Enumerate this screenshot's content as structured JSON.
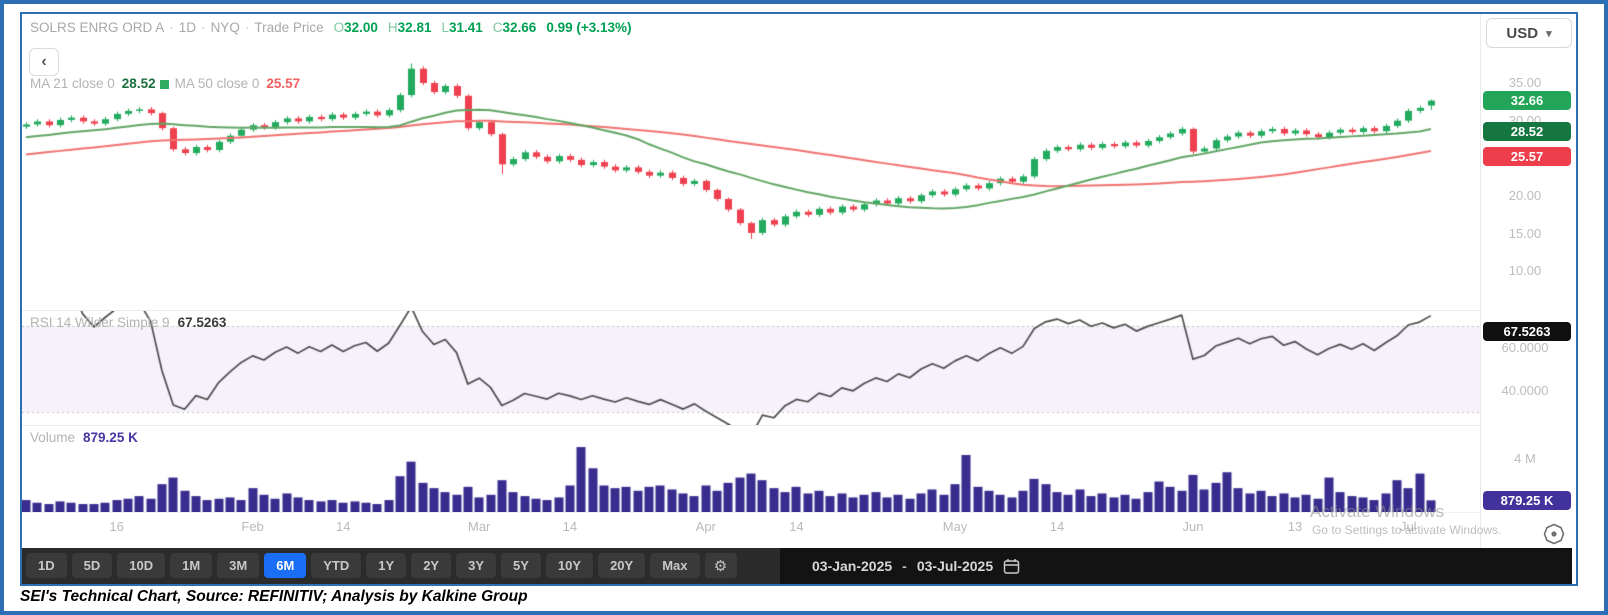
{
  "header": {
    "symbol": "SOLRS ENRG ORD A",
    "dot": "·",
    "interval": "1D",
    "exchange": "NYQ",
    "series": "Trade Price",
    "ohlc": [
      {
        "k": "O",
        "v": "32.00"
      },
      {
        "k": "H",
        "v": "32.81"
      },
      {
        "k": "L",
        "v": "31.41"
      },
      {
        "k": "C",
        "v": "32.66"
      }
    ],
    "change": "0.99 (+3.13%)",
    "back_glyph": "‹"
  },
  "currency": {
    "label": "USD",
    "chevron": "▾"
  },
  "legend": {
    "ma21_label": "MA 21 close 0",
    "ma21_value": "28.52",
    "ma50_label": "MA 50 close 0",
    "ma50_value": "25.57"
  },
  "price_axis": {
    "ticks": [
      "35.00",
      "30.00",
      "25.00",
      "20.00",
      "15.00",
      "10.00"
    ],
    "last_badge": "32.66",
    "ma21_badge": "28.52",
    "ma50_badge": "25.57"
  },
  "rsi_pane": {
    "label": "RSI 14 Wilder Simple 9",
    "value": "67.5263",
    "axis_ticks": [
      "60.0000",
      "40.0000"
    ],
    "badge": "67.5263"
  },
  "volume_pane": {
    "label": "Volume",
    "value": "879.25 K",
    "axis_tick": "4 M",
    "badge": "879.25 K"
  },
  "time_axis": {
    "ticks": [
      {
        "label": "16",
        "day": 8
      },
      {
        "label": "Feb",
        "day": 20
      },
      {
        "label": "14",
        "day": 28
      },
      {
        "label": "Mar",
        "day": 40
      },
      {
        "label": "14",
        "day": 48
      },
      {
        "label": "Apr",
        "day": 60
      },
      {
        "label": "14",
        "day": 68
      },
      {
        "label": "May",
        "day": 82
      },
      {
        "label": "14",
        "day": 91
      },
      {
        "label": "Jun",
        "day": 103
      },
      {
        "label": "13",
        "day": 112
      },
      {
        "label": "Jul",
        "day": 122
      }
    ]
  },
  "toolbar": {
    "ranges": [
      "1D",
      "5D",
      "10D",
      "1M",
      "3M",
      "6M",
      "YTD",
      "1Y",
      "2Y",
      "3Y",
      "5Y",
      "10Y",
      "20Y",
      "Max"
    ],
    "selected": "6M",
    "gear_glyph": "⚙",
    "date_from": "03-Jan-2025",
    "date_to": "03-Jul-2025",
    "date_separator": "-"
  },
  "watermark": {
    "line1": "Activate Windows",
    "line2": "Go to Settings to activate Windows."
  },
  "caption": "SEI's Technical Chart, Source: REFINITIV; Analysis by Kalkine Group",
  "colors": {
    "frame_blue": "#2d6fb5",
    "candle_up": "#22ab5e",
    "candle_down": "#ef404f",
    "ma21": "#61a564",
    "ma50": "#f0726f",
    "rsi_line": "#4d4d4d",
    "rsi_band_bg": "#f7f1fb",
    "dashed_gray": "#c4c4c4",
    "volume_bar": "#382d8e",
    "badge_last": "#23a559",
    "badge_ma21": "#15773f",
    "badge_ma50": "#ee3d4b",
    "badge_rsi": "#101010",
    "badge_volume": "#41339b",
    "selected_range_blue": "#1a6df5",
    "value_green": "#00a152"
  },
  "chart_data": [
    {
      "type": "candlestick",
      "title": "SOLRS ENRG ORD A · 1D · NYQ · Trade Price",
      "x_start": "03-Jan-2025",
      "x_end": "03-Jul-2025",
      "interval": "daily",
      "ylim": [
        5,
        40
      ],
      "yticks": [
        35,
        30,
        25,
        20,
        15,
        10
      ],
      "last": {
        "open": 32.0,
        "high": 32.81,
        "low": 31.41,
        "close": 32.66,
        "change_pct": "+3.13%"
      },
      "overlays": [
        {
          "name": "MA 21 close",
          "period": 21,
          "last": 28.52
        },
        {
          "name": "MA 50 close",
          "period": 50,
          "last": 25.57
        }
      ],
      "ma_warmup": {
        "from": 21.5,
        "to": 29.2,
        "count": 50
      },
      "candles": [
        [
          29.2,
          29.8,
          28.9,
          29.5
        ],
        [
          29.5,
          30.2,
          29.2,
          29.9
        ],
        [
          29.9,
          30.2,
          29.1,
          29.4
        ],
        [
          29.4,
          30.4,
          29.1,
          30.1
        ],
        [
          30.1,
          30.7,
          29.8,
          30.4
        ],
        [
          30.4,
          30.7,
          29.6,
          29.9
        ],
        [
          29.9,
          30.2,
          29.3,
          29.6
        ],
        [
          29.6,
          30.5,
          29.3,
          30.2
        ],
        [
          30.2,
          31.2,
          29.9,
          30.9
        ],
        [
          30.9,
          31.6,
          30.6,
          31.3
        ],
        [
          31.3,
          31.8,
          31.0,
          31.5
        ],
        [
          31.5,
          31.8,
          30.7,
          31.0
        ],
        [
          31.0,
          31.2,
          28.7,
          29.0
        ],
        [
          29.0,
          29.2,
          25.9,
          26.2
        ],
        [
          26.2,
          26.5,
          25.4,
          25.7
        ],
        [
          25.7,
          26.8,
          25.4,
          26.5
        ],
        [
          26.5,
          26.8,
          25.8,
          26.1
        ],
        [
          26.1,
          27.5,
          25.8,
          27.2
        ],
        [
          27.2,
          28.3,
          26.9,
          28.0
        ],
        [
          28.0,
          29.1,
          27.7,
          28.8
        ],
        [
          28.8,
          29.7,
          28.5,
          29.4
        ],
        [
          29.4,
          29.7,
          28.8,
          29.1
        ],
        [
          29.1,
          30.1,
          28.8,
          29.8
        ],
        [
          29.8,
          30.6,
          29.5,
          30.3
        ],
        [
          30.3,
          30.6,
          29.6,
          29.9
        ],
        [
          29.9,
          30.8,
          29.6,
          30.5
        ],
        [
          30.5,
          30.8,
          29.9,
          30.2
        ],
        [
          30.2,
          31.1,
          29.9,
          30.8
        ],
        [
          30.8,
          31.1,
          30.1,
          30.4
        ],
        [
          30.4,
          31.2,
          30.1,
          30.9
        ],
        [
          30.9,
          31.5,
          30.6,
          31.2
        ],
        [
          31.2,
          31.5,
          30.4,
          30.7
        ],
        [
          30.7,
          31.7,
          30.4,
          31.4
        ],
        [
          31.4,
          33.7,
          31.1,
          33.4
        ],
        [
          33.4,
          37.6,
          33.1,
          36.9
        ],
        [
          36.9,
          37.2,
          34.7,
          35.0
        ],
        [
          35.0,
          35.3,
          33.5,
          33.8
        ],
        [
          33.8,
          34.9,
          33.5,
          34.6
        ],
        [
          34.6,
          34.9,
          33.0,
          33.3
        ],
        [
          33.3,
          33.5,
          28.7,
          29.0
        ],
        [
          29.0,
          30.1,
          28.7,
          29.8
        ],
        [
          29.8,
          30.1,
          27.9,
          28.2
        ],
        [
          28.2,
          28.4,
          22.9,
          24.2
        ],
        [
          24.2,
          25.2,
          23.9,
          24.9
        ],
        [
          24.9,
          26.1,
          24.6,
          25.8
        ],
        [
          25.8,
          26.1,
          24.9,
          25.2
        ],
        [
          25.2,
          25.5,
          24.3,
          24.6
        ],
        [
          24.6,
          25.6,
          24.3,
          25.3
        ],
        [
          25.3,
          25.6,
          24.5,
          24.8
        ],
        [
          24.8,
          25.1,
          23.8,
          24.1
        ],
        [
          24.1,
          24.8,
          23.8,
          24.5
        ],
        [
          24.5,
          24.8,
          23.6,
          23.9
        ],
        [
          23.9,
          24.2,
          23.1,
          23.4
        ],
        [
          23.4,
          24.1,
          23.1,
          23.8
        ],
        [
          23.8,
          24.1,
          22.9,
          23.2
        ],
        [
          23.2,
          23.5,
          22.4,
          22.7
        ],
        [
          22.7,
          23.4,
          22.4,
          23.1
        ],
        [
          23.1,
          23.4,
          22.1,
          22.4
        ],
        [
          22.4,
          22.7,
          21.3,
          21.6
        ],
        [
          21.6,
          22.3,
          21.3,
          22.0
        ],
        [
          22.0,
          22.2,
          20.5,
          20.8
        ],
        [
          20.8,
          21.0,
          19.3,
          19.6
        ],
        [
          19.6,
          19.8,
          17.9,
          18.2
        ],
        [
          18.2,
          18.4,
          16.1,
          16.4
        ],
        [
          16.4,
          16.6,
          14.3,
          15.1
        ],
        [
          15.1,
          17.1,
          14.8,
          16.8
        ],
        [
          16.8,
          17.1,
          15.9,
          16.2
        ],
        [
          16.2,
          17.6,
          15.9,
          17.3
        ],
        [
          17.3,
          18.2,
          17.0,
          17.9
        ],
        [
          17.9,
          18.2,
          17.2,
          17.5
        ],
        [
          17.5,
          18.6,
          17.2,
          18.3
        ],
        [
          18.3,
          18.6,
          17.5,
          17.8
        ],
        [
          17.8,
          18.9,
          17.5,
          18.6
        ],
        [
          18.6,
          18.9,
          17.9,
          18.2
        ],
        [
          18.2,
          19.2,
          17.9,
          18.9
        ],
        [
          18.9,
          19.7,
          18.6,
          19.4
        ],
        [
          19.4,
          19.7,
          18.7,
          19.0
        ],
        [
          19.0,
          20.0,
          18.7,
          19.7
        ],
        [
          19.7,
          20.0,
          19.0,
          19.3
        ],
        [
          19.3,
          20.4,
          19.0,
          20.1
        ],
        [
          20.1,
          20.9,
          19.8,
          20.6
        ],
        [
          20.6,
          20.9,
          19.9,
          20.2
        ],
        [
          20.2,
          21.2,
          19.9,
          20.9
        ],
        [
          20.9,
          21.7,
          20.6,
          21.4
        ],
        [
          21.4,
          21.7,
          20.7,
          21.0
        ],
        [
          21.0,
          22.0,
          20.7,
          21.7
        ],
        [
          21.7,
          22.6,
          21.4,
          22.3
        ],
        [
          22.3,
          22.6,
          21.6,
          21.9
        ],
        [
          21.9,
          22.9,
          21.6,
          22.6
        ],
        [
          22.6,
          25.2,
          22.3,
          24.9
        ],
        [
          24.9,
          26.3,
          24.6,
          26.0
        ],
        [
          26.0,
          26.8,
          25.7,
          26.5
        ],
        [
          26.5,
          26.8,
          25.9,
          26.2
        ],
        [
          26.2,
          27.1,
          25.9,
          26.8
        ],
        [
          26.8,
          27.1,
          26.1,
          26.4
        ],
        [
          26.4,
          27.2,
          26.1,
          26.9
        ],
        [
          26.9,
          27.2,
          26.3,
          26.6
        ],
        [
          26.6,
          27.4,
          26.3,
          27.1
        ],
        [
          27.1,
          27.4,
          26.4,
          26.7
        ],
        [
          26.7,
          27.6,
          26.4,
          27.3
        ],
        [
          27.3,
          28.1,
          27.0,
          27.8
        ],
        [
          27.8,
          28.6,
          27.5,
          28.3
        ],
        [
          28.3,
          29.2,
          28.0,
          28.9
        ],
        [
          28.9,
          29.1,
          25.6,
          25.9
        ],
        [
          25.9,
          26.6,
          25.6,
          26.3
        ],
        [
          26.3,
          27.7,
          26.0,
          27.4
        ],
        [
          27.4,
          28.2,
          27.1,
          27.9
        ],
        [
          27.9,
          28.7,
          27.6,
          28.4
        ],
        [
          28.4,
          28.7,
          27.7,
          28.0
        ],
        [
          28.0,
          28.9,
          27.7,
          28.6
        ],
        [
          28.6,
          29.2,
          28.3,
          28.9
        ],
        [
          28.9,
          29.2,
          28.0,
          28.3
        ],
        [
          28.3,
          29.0,
          28.0,
          28.7
        ],
        [
          28.7,
          29.0,
          27.9,
          28.2
        ],
        [
          28.2,
          28.5,
          27.5,
          27.8
        ],
        [
          27.8,
          28.7,
          27.5,
          28.4
        ],
        [
          28.4,
          29.1,
          28.1,
          28.8
        ],
        [
          28.8,
          29.1,
          28.2,
          28.5
        ],
        [
          28.5,
          29.3,
          28.2,
          29.0
        ],
        [
          29.0,
          29.3,
          28.3,
          28.6
        ],
        [
          28.6,
          29.6,
          28.3,
          29.3
        ],
        [
          29.3,
          30.3,
          29.0,
          30.0
        ],
        [
          30.0,
          31.6,
          29.7,
          31.3
        ],
        [
          31.3,
          32.0,
          31.0,
          31.7
        ],
        [
          32.0,
          32.81,
          31.41,
          32.66
        ]
      ]
    },
    {
      "type": "line",
      "name": "RSI 14 Wilder Simple 9",
      "last": 67.5263,
      "bands": {
        "overbought": 70,
        "oversold": 30
      },
      "yticks": [
        60,
        40
      ],
      "derivation": "Wilder RSI period 14 computed from candle closes"
    },
    {
      "type": "bar",
      "name": "Volume",
      "unit": "millions of shares",
      "last_label": "879.25 K",
      "ytick_label": "4 M",
      "ytick_value": 4,
      "values": [
        0.9,
        0.7,
        0.6,
        0.8,
        0.7,
        0.6,
        0.6,
        0.7,
        0.9,
        1.0,
        1.2,
        1.0,
        2.1,
        2.6,
        1.6,
        1.2,
        0.9,
        1.0,
        1.1,
        0.9,
        1.8,
        1.3,
        1.0,
        1.4,
        1.1,
        0.9,
        0.8,
        0.9,
        0.7,
        0.8,
        0.7,
        0.6,
        0.9,
        2.7,
        3.8,
        2.2,
        1.8,
        1.5,
        1.3,
        1.9,
        1.1,
        1.3,
        2.4,
        1.5,
        1.2,
        1.0,
        0.9,
        1.1,
        2.0,
        4.9,
        3.3,
        2.0,
        1.8,
        1.9,
        1.6,
        1.9,
        2.0,
        1.7,
        1.4,
        1.2,
        2.0,
        1.6,
        2.2,
        2.6,
        2.9,
        2.4,
        1.8,
        1.5,
        1.9,
        1.4,
        1.6,
        1.2,
        1.4,
        1.1,
        1.3,
        1.5,
        1.1,
        1.3,
        1.0,
        1.4,
        1.7,
        1.3,
        2.1,
        4.3,
        1.9,
        1.6,
        1.3,
        1.1,
        1.6,
        2.5,
        2.1,
        1.5,
        1.3,
        1.7,
        1.2,
        1.4,
        1.1,
        1.3,
        1.0,
        1.5,
        2.3,
        1.9,
        1.6,
        2.8,
        1.7,
        2.2,
        3.0,
        1.8,
        1.4,
        1.6,
        1.2,
        1.4,
        1.1,
        1.3,
        1.0,
        2.6,
        1.5,
        1.2,
        1.1,
        0.9,
        1.4,
        2.4,
        1.8,
        2.9,
        0.88
      ]
    }
  ]
}
